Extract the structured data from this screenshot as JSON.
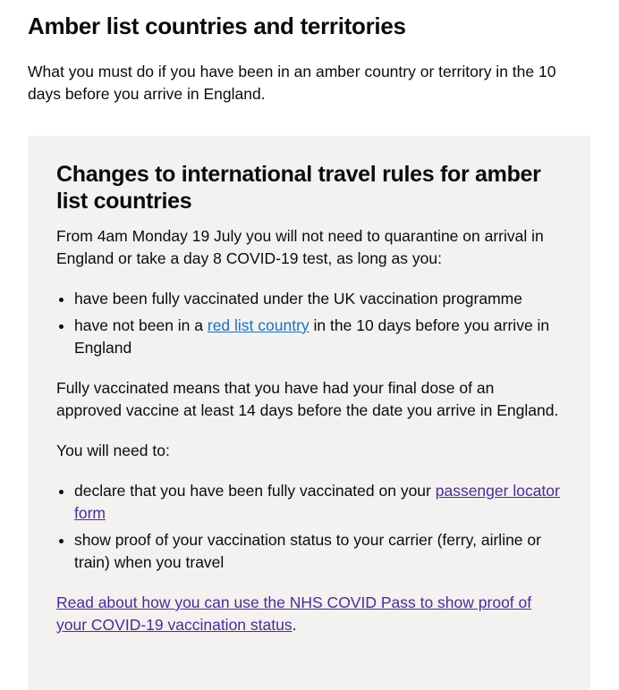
{
  "title": "Amber list countries and territories",
  "lead": "What you must do if you have been in an amber country or territory in the 10 days before you arrive in England.",
  "box": {
    "heading": "Changes to international travel rules for amber list countries",
    "intro": "From 4am Monday 19 July you will not need to quarantine on arrival in England or take a day 8 COVID-19 test, as long as you:",
    "list1": {
      "item1": "have been fully vaccinated under the UK vaccination programme",
      "item2_pre": "have not been in a ",
      "item2_link": "red list country",
      "item2_post": " in the 10 days before you arrive in England"
    },
    "fully": "Fully vaccinated means that you have had your final dose of an approved vaccine at least 14 days before the date you arrive in England.",
    "need": "You will need to:",
    "list2": {
      "item1_pre": "declare that you have been fully vaccinated on your ",
      "item1_link": "passenger locator form",
      "item2": "show proof of your vaccination status to your carrier (ferry, airline or train) when you travel"
    },
    "nhs_link": "Read about how you can use the NHS COVID Pass to show proof of your COVID-19 vaccination status",
    "nhs_post": "."
  },
  "colors": {
    "link": "#1d70b8",
    "visited": "#4c2c92",
    "panel": "#f3f2f1"
  }
}
